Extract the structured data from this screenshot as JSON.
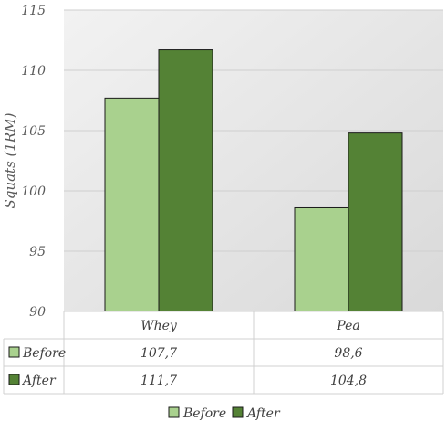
{
  "chart_data": {
    "type": "bar",
    "ylabel": "Squats (1RM)",
    "xlabel": "",
    "title": "",
    "categories": [
      "Whey",
      "Pea"
    ],
    "series": [
      {
        "name": "Before",
        "values": [
          107.7,
          98.6
        ],
        "labels": [
          "107,7",
          "98,6"
        ],
        "color": "#a9d18e"
      },
      {
        "name": "After",
        "values": [
          111.7,
          104.8
        ],
        "labels": [
          "111,7",
          "104,8"
        ],
        "color": "#548235"
      }
    ],
    "ylim": [
      90,
      115
    ],
    "yticks": [
      "90",
      "95",
      "100",
      "105",
      "110",
      "115"
    ],
    "grid": true,
    "data_table": true,
    "legend_position": "bottom"
  }
}
